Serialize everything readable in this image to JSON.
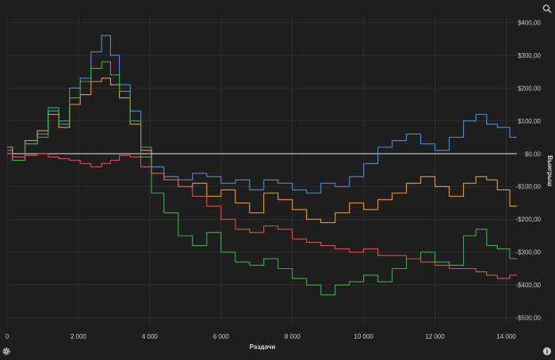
{
  "chart_data": {
    "type": "line",
    "xlabel": "Раздачи",
    "ylabel": "Выигрыш",
    "xlim": [
      0,
      14300
    ],
    "ylim": [
      -520,
      420
    ],
    "x_ticks": [
      0,
      2000,
      4000,
      6000,
      8000,
      10000,
      12000,
      14000
    ],
    "x_tick_labels": [
      "0",
      "2 000",
      "4 000",
      "6 000",
      "8 000",
      "10 000",
      "12 000",
      "14 000"
    ],
    "y_ticks": [
      400,
      300,
      200,
      100,
      0,
      -100,
      -200,
      -300,
      -400,
      -500
    ],
    "y_tick_labels": [
      "$400,00",
      "$300,00",
      "$200,00",
      "$100,00",
      "$0,00",
      "-$100,00",
      "-$200,00",
      "-$300,00",
      "-$400,00",
      "-$500,00"
    ],
    "grid": true,
    "zero_line": true,
    "series": [
      {
        "color": "#4a90d9",
        "x": [
          0,
          300,
          700,
          1000,
          1300,
          1600,
          1900,
          2200,
          2500,
          2800,
          3000,
          3300,
          3600,
          3900,
          4200,
          4600,
          5000,
          5400,
          5800,
          6200,
          6600,
          7000,
          7400,
          7800,
          8200,
          8600,
          9000,
          9400,
          9800,
          10200,
          10600,
          11000,
          11400,
          11800,
          12200,
          12600,
          13000,
          13300,
          13600,
          13900,
          14300
        ],
        "y": [
          10,
          -20,
          30,
          60,
          130,
          100,
          200,
          230,
          310,
          360,
          300,
          210,
          130,
          20,
          -40,
          -70,
          -80,
          -60,
          -70,
          -90,
          -80,
          -110,
          -80,
          -90,
          -110,
          -120,
          -90,
          -100,
          -70,
          -30,
          20,
          40,
          60,
          30,
          10,
          50,
          100,
          120,
          90,
          80,
          50
        ]
      },
      {
        "color": "#ef9a3a",
        "x": [
          0,
          300,
          700,
          1000,
          1300,
          1600,
          1900,
          2200,
          2500,
          2800,
          3000,
          3300,
          3600,
          3900,
          4200,
          4600,
          5000,
          5400,
          5800,
          6200,
          6600,
          7000,
          7400,
          7800,
          8200,
          8600,
          9000,
          9400,
          9800,
          10200,
          10600,
          11000,
          11400,
          11800,
          12200,
          12600,
          13000,
          13300,
          13600,
          13900,
          14300
        ],
        "y": [
          20,
          -10,
          40,
          70,
          120,
          80,
          150,
          180,
          220,
          230,
          210,
          170,
          90,
          10,
          -60,
          -80,
          -100,
          -90,
          -130,
          -110,
          -150,
          -180,
          -120,
          -140,
          -170,
          -200,
          -210,
          -180,
          -150,
          -170,
          -140,
          -120,
          -90,
          -70,
          -100,
          -130,
          -90,
          -70,
          -80,
          -110,
          -160
        ]
      },
      {
        "color": "#3cb043",
        "x": [
          0,
          300,
          700,
          1000,
          1300,
          1600,
          1900,
          2200,
          2500,
          2800,
          3000,
          3300,
          3600,
          3900,
          4200,
          4600,
          5000,
          5400,
          5800,
          6200,
          6600,
          7000,
          7400,
          7800,
          8200,
          8600,
          9000,
          9400,
          9800,
          10200,
          10600,
          11000,
          11400,
          11800,
          12200,
          12600,
          13000,
          13300,
          13600,
          13900,
          14300
        ],
        "y": [
          0,
          -20,
          30,
          50,
          140,
          90,
          170,
          220,
          260,
          280,
          240,
          190,
          100,
          -10,
          -120,
          -180,
          -250,
          -280,
          -240,
          -300,
          -330,
          -340,
          -320,
          -350,
          -380,
          -400,
          -430,
          -400,
          -390,
          -370,
          -390,
          -350,
          -320,
          -300,
          -330,
          -340,
          -250,
          -230,
          -280,
          -290,
          -320
        ]
      },
      {
        "color": "#d9534f",
        "x": [
          0,
          300,
          700,
          1000,
          1300,
          1600,
          1900,
          2200,
          2500,
          2800,
          3000,
          3300,
          3600,
          3900,
          4200,
          4600,
          5000,
          5400,
          5800,
          6200,
          6600,
          7000,
          7400,
          7800,
          8200,
          8600,
          9000,
          9400,
          9800,
          10200,
          10600,
          11000,
          11400,
          11800,
          12200,
          12600,
          13000,
          13300,
          13600,
          13900,
          14300
        ],
        "y": [
          0,
          -10,
          -5,
          0,
          -10,
          -15,
          -20,
          -30,
          -40,
          -30,
          -20,
          -5,
          -10,
          -40,
          -60,
          -80,
          -100,
          -130,
          -160,
          -200,
          -230,
          -240,
          -220,
          -230,
          -260,
          -270,
          -280,
          -290,
          -300,
          -290,
          -310,
          -310,
          -320,
          -330,
          -340,
          -350,
          -350,
          -360,
          -370,
          -380,
          -370
        ]
      }
    ]
  }
}
